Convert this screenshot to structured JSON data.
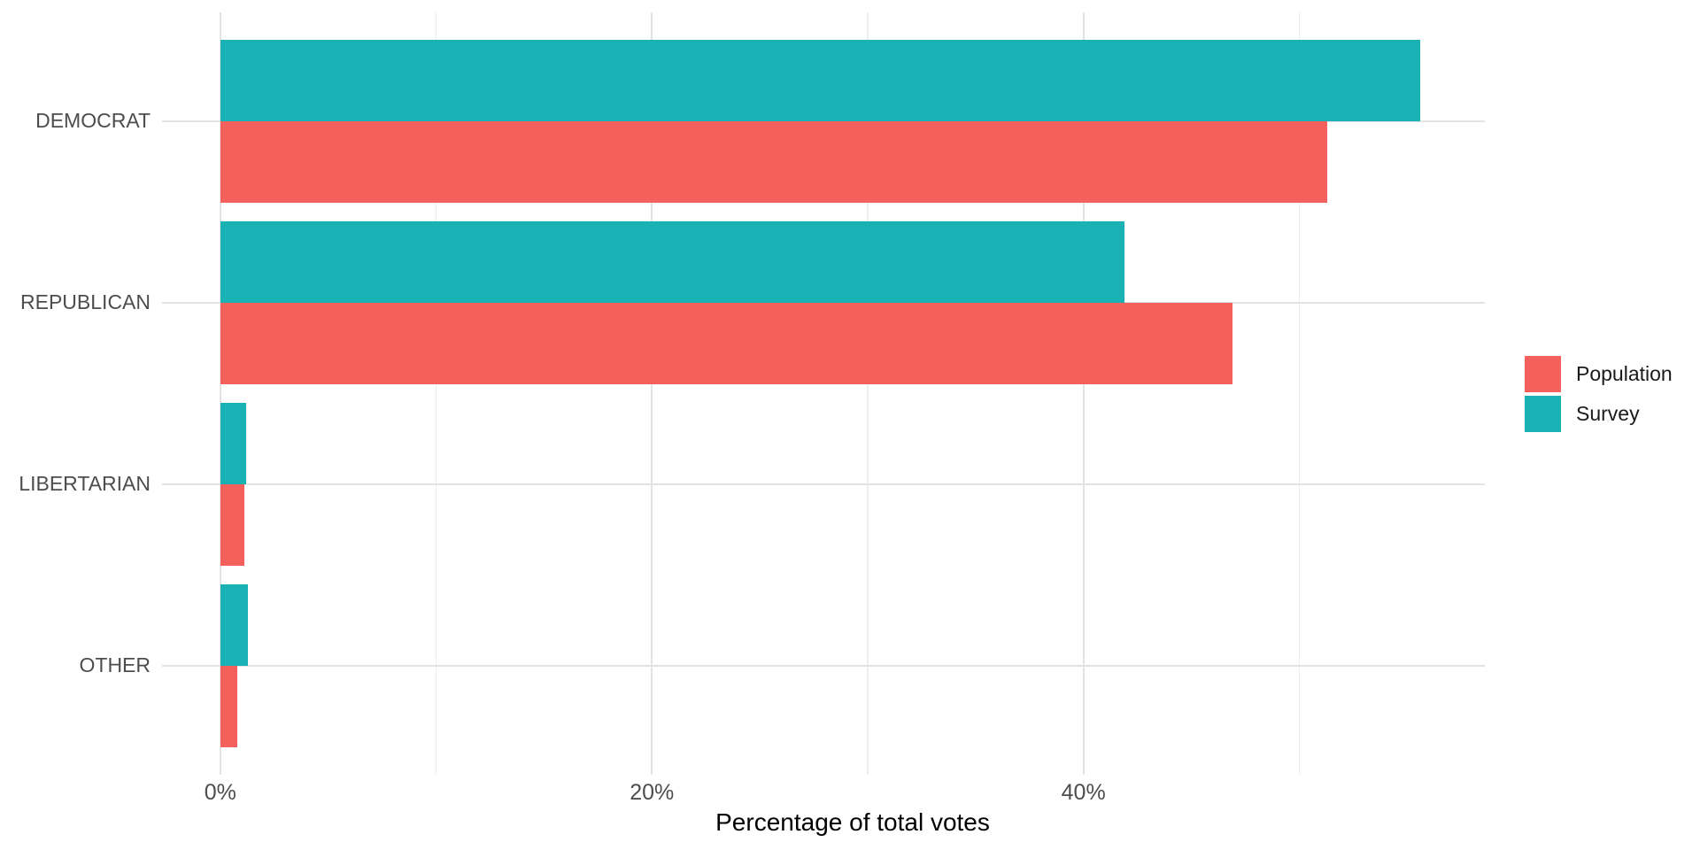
{
  "chart_data": {
    "type": "bar",
    "orientation": "horizontal",
    "title": "",
    "xlabel": "Percentage of total votes",
    "ylabel": "",
    "categories": [
      "DEMOCRAT",
      "REPUBLICAN",
      "LIBERTARIAN",
      "OTHER"
    ],
    "series": [
      {
        "name": "Population",
        "color": "#f4605c",
        "values": [
          51.3,
          46.9,
          1.1,
          0.8
        ]
      },
      {
        "name": "Survey",
        "color": "#1ab1b5",
        "values": [
          55.6,
          41.9,
          1.2,
          1.3
        ]
      }
    ],
    "x_ticks": [
      {
        "value": 0,
        "label": "0%"
      },
      {
        "value": 20,
        "label": "20%"
      },
      {
        "value": 40,
        "label": "40%"
      }
    ],
    "x_minor_ticks": [
      10,
      30,
      50
    ],
    "xlim": [
      -2.7,
      58.6
    ],
    "grid": true,
    "legend_position": "right",
    "legend_entries": [
      "Population",
      "Survey"
    ],
    "colors": {
      "population": "#f4605c",
      "survey": "#1ab1b5",
      "grid_major": "#e3e3e3",
      "grid_minor": "#eeeeee",
      "axis_text": "#4d4d4d",
      "title_text": "#000000",
      "background": "#ffffff"
    }
  }
}
